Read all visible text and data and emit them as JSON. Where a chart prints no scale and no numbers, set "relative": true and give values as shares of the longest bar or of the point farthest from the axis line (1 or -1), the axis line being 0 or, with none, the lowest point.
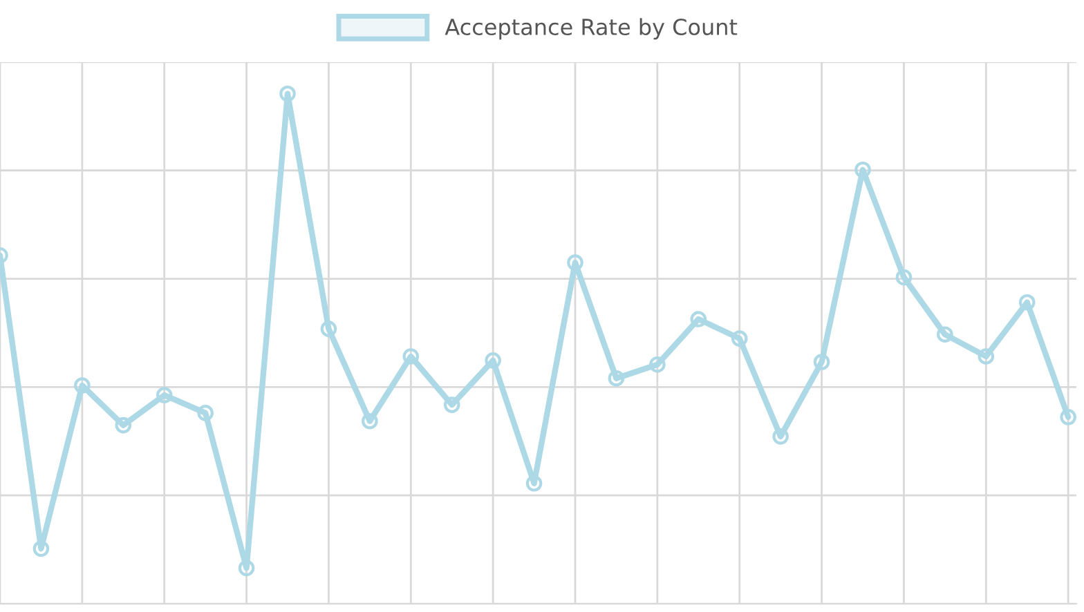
{
  "chart_data": {
    "type": "line",
    "relative": true,
    "categories": [
      null,
      null,
      null,
      null,
      null,
      null,
      null,
      null,
      null,
      null,
      null,
      null,
      null,
      null,
      null,
      null,
      null,
      null,
      null,
      null,
      null,
      null,
      null,
      null,
      null,
      null,
      null
    ],
    "series": [
      {
        "name": "Acceptance Rate by Count",
        "color": "#add8e6",
        "values": [
          0.683,
          0.108,
          0.428,
          0.35,
          0.409,
          0.374,
          0.07,
          1,
          0.539,
          0.358,
          0.485,
          0.39,
          0.477,
          0.236,
          0.669,
          0.442,
          0.469,
          0.558,
          0.52,
          0.328,
          0.474,
          0.851,
          0.64,
          0.528,
          0.485,
          0.591,
          0.366
        ]
      }
    ],
    "marker": "circle",
    "line_style": "solid",
    "grid": true,
    "legend": "top",
    "tick_labels": false
  }
}
